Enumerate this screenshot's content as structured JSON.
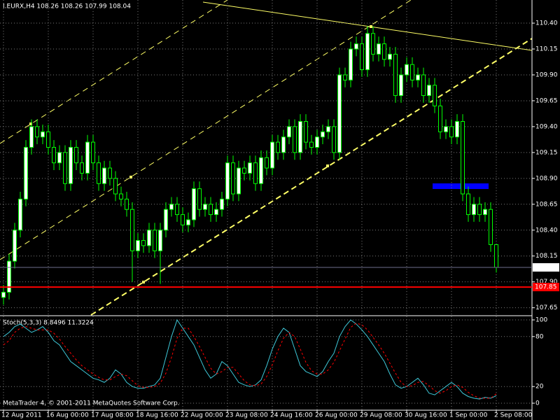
{
  "chart_data": [
    {
      "type": "candlestick",
      "title": "I.EURX,H4 108.26 108.26 107.99 108.04",
      "categories": [
        "12 Aug 2011",
        null,
        null,
        null,
        null,
        null,
        null,
        null,
        "16 Aug 00:00",
        null,
        null,
        null,
        null,
        null,
        null,
        null,
        "17 Aug 08:00",
        null,
        null,
        null,
        null,
        null,
        null,
        null,
        "18 Aug 16:00",
        null,
        null,
        null,
        null,
        null,
        null,
        null,
        "22 Aug 00:00",
        null,
        null,
        null,
        null,
        null,
        null,
        null,
        "23 Aug 08:00",
        null,
        null,
        null,
        null,
        null,
        null,
        null,
        "24 Aug 16:00",
        null,
        null,
        null,
        null,
        null,
        null,
        null,
        "26 Aug 00:00",
        null,
        null,
        null,
        null,
        null,
        null,
        null,
        "29 Aug 08:00",
        null,
        null,
        null,
        null,
        null,
        null,
        null,
        "30 Aug 16:00",
        null,
        null,
        null,
        null,
        null,
        null,
        null,
        "1 Sep 00:00",
        null,
        null,
        null,
        null,
        null,
        null,
        null,
        "2 Sep 08:00"
      ],
      "open": [
        107.75,
        107.8,
        108.1,
        108.4,
        108.7,
        109.2,
        109.4,
        109.3,
        109.35,
        109.2,
        109.05,
        109.15,
        108.85,
        109.2,
        109.05,
        108.95,
        109.25,
        109.05,
        108.85,
        109.0,
        108.9,
        108.75,
        108.7,
        108.6,
        108.2,
        108.3,
        108.25,
        108.4,
        108.2,
        108.4,
        108.6,
        108.65,
        108.55,
        108.45,
        108.5,
        108.8,
        108.6,
        108.65,
        108.55,
        108.6,
        108.7,
        109.05,
        108.75,
        109.0,
        108.95,
        109.05,
        108.85,
        109.1,
        109.0,
        109.25,
        109.15,
        109.3,
        109.4,
        109.15,
        109.45,
        109.25,
        109.2,
        109.3,
        109.35,
        109.4,
        109.15,
        109.9,
        109.85,
        110.15,
        110.2,
        109.95,
        110.3,
        110.1,
        110.2,
        110.05,
        110.1,
        109.7,
        109.9,
        110.0,
        109.85,
        109.9,
        109.7,
        109.8,
        109.6,
        109.35,
        109.4,
        109.3,
        109.45,
        108.75,
        108.55,
        108.65,
        108.55,
        108.6,
        108.26
      ],
      "high": [
        107.87,
        108.17,
        108.47,
        108.77,
        109.27,
        109.47,
        109.47,
        109.42,
        109.42,
        109.27,
        109.22,
        109.22,
        109.27,
        109.27,
        109.12,
        109.32,
        109.32,
        109.12,
        109.07,
        109.07,
        108.97,
        108.82,
        108.77,
        108.67,
        108.37,
        108.37,
        108.47,
        108.47,
        108.47,
        108.67,
        108.72,
        108.72,
        108.62,
        108.57,
        108.87,
        108.87,
        108.72,
        108.72,
        108.67,
        108.77,
        109.12,
        109.12,
        109.07,
        109.07,
        109.12,
        109.12,
        109.17,
        109.17,
        109.32,
        109.32,
        109.37,
        109.47,
        109.47,
        109.52,
        109.52,
        109.32,
        109.37,
        109.42,
        109.47,
        109.47,
        109.97,
        109.97,
        110.22,
        110.27,
        110.27,
        110.37,
        110.37,
        110.27,
        110.27,
        110.17,
        110.17,
        109.97,
        110.07,
        110.07,
        109.97,
        109.97,
        109.87,
        109.87,
        109.67,
        109.47,
        109.47,
        109.52,
        109.52,
        108.82,
        108.72,
        108.72,
        108.67,
        108.67,
        108.26
      ],
      "low": [
        107.68,
        107.73,
        108.03,
        108.33,
        108.63,
        109.13,
        109.23,
        109.23,
        109.13,
        108.98,
        108.98,
        108.78,
        108.78,
        108.98,
        108.88,
        108.88,
        108.98,
        108.78,
        108.78,
        108.83,
        108.68,
        108.63,
        108.53,
        107.9,
        108.13,
        108.18,
        108.18,
        108.13,
        107.88,
        108.33,
        108.53,
        108.48,
        108.38,
        108.38,
        108.43,
        108.53,
        108.53,
        108.48,
        108.48,
        108.53,
        108.63,
        108.68,
        108.68,
        108.88,
        108.88,
        108.78,
        108.78,
        108.93,
        108.93,
        109.08,
        109.08,
        109.23,
        109.08,
        109.08,
        109.18,
        109.13,
        109.13,
        109.23,
        109.28,
        109.08,
        109.08,
        109.78,
        109.78,
        110.08,
        109.88,
        109.88,
        110.03,
        110.03,
        109.98,
        109.98,
        109.63,
        109.63,
        109.83,
        109.78,
        109.78,
        109.63,
        109.63,
        109.53,
        109.28,
        109.28,
        109.23,
        109.23,
        108.68,
        108.48,
        108.48,
        108.48,
        108.48,
        108.19,
        107.99
      ],
      "close": [
        107.8,
        108.1,
        108.4,
        108.7,
        109.2,
        109.4,
        109.3,
        109.35,
        109.2,
        109.05,
        109.15,
        108.85,
        109.2,
        109.05,
        108.95,
        109.25,
        109.05,
        108.85,
        109.0,
        108.9,
        108.75,
        108.7,
        108.6,
        108.2,
        108.3,
        108.25,
        108.4,
        108.2,
        108.4,
        108.6,
        108.65,
        108.55,
        108.45,
        108.5,
        108.8,
        108.6,
        108.65,
        108.55,
        108.6,
        108.7,
        109.05,
        108.75,
        109.0,
        108.95,
        109.05,
        108.85,
        109.1,
        109.0,
        109.25,
        109.15,
        109.3,
        109.4,
        109.15,
        109.45,
        109.25,
        109.2,
        109.3,
        109.35,
        109.4,
        109.15,
        109.9,
        109.85,
        110.15,
        110.2,
        109.95,
        110.3,
        110.1,
        110.2,
        110.05,
        110.1,
        109.7,
        109.9,
        110.0,
        109.85,
        109.9,
        109.7,
        109.8,
        109.6,
        109.35,
        109.4,
        109.3,
        109.45,
        108.75,
        108.55,
        108.65,
        108.55,
        108.6,
        108.26,
        108.04
      ],
      "candle_color": "#00ff00",
      "bull_fill": "#ffffff",
      "bear_fill": "#000000",
      "ylim": [
        107.58,
        110.61
      ],
      "yticks": [
        107.65,
        {
          "value": 107.9,
          "label": "107.90"
        },
        108.15,
        {
          "value": 108.4,
          "label": "108.40"
        },
        108.65,
        {
          "value": 108.9,
          "label": "108.90"
        },
        109.15,
        {
          "value": 109.4,
          "label": "109.40"
        },
        109.65,
        {
          "value": 109.9,
          "label": "109.90"
        },
        110.15,
        {
          "value": 110.4,
          "label": "110.40"
        }
      ],
      "grid": true,
      "hlines": [
        {
          "value": 108.04,
          "color": "#6e6e8c"
        },
        {
          "value": 107.85,
          "color": "#ff0000"
        }
      ]
    },
    {
      "type": "line",
      "title": "Stoch(5,3,3) 8.8496 11.3224",
      "annotation": "MetaTrader 4, © 2001-2011 MetaQuotes Software Corp.",
      "series": [
        {
          "color": "#3ec8d8",
          "style": "solid",
          "values": [
            80,
            85,
            92,
            95,
            90,
            85,
            88,
            92,
            85,
            75,
            70,
            60,
            50,
            45,
            40,
            35,
            30,
            28,
            25,
            30,
            40,
            35,
            25,
            20,
            18,
            18,
            20,
            22,
            30,
            55,
            80,
            100,
            90,
            80,
            70,
            55,
            40,
            30,
            35,
            50,
            45,
            35,
            25,
            22,
            20,
            22,
            28,
            45,
            65,
            80,
            90,
            85,
            65,
            45,
            38,
            35,
            32,
            38,
            50,
            60,
            80,
            92,
            100,
            95,
            88,
            80,
            70,
            60,
            50,
            35,
            22,
            18,
            20,
            25,
            30,
            22,
            12,
            10,
            15,
            20,
            25,
            20,
            12,
            8,
            6,
            5,
            7,
            6,
            8.8496
          ]
        },
        {
          "color": "#ff0000",
          "style": "dashed",
          "values": [
            70,
            75,
            85,
            90,
            92,
            90,
            88,
            88,
            88,
            84,
            77,
            68,
            60,
            52,
            45,
            40,
            35,
            31,
            28,
            28,
            32,
            35,
            33,
            27,
            21,
            19,
            19,
            20,
            24,
            36,
            55,
            78,
            90,
            90,
            80,
            68,
            55,
            42,
            35,
            38,
            43,
            43,
            35,
            27,
            22,
            21,
            23,
            32,
            46,
            63,
            78,
            85,
            80,
            65,
            49,
            39,
            35,
            35,
            40,
            49,
            63,
            77,
            91,
            96,
            94,
            88,
            79,
            70,
            60,
            48,
            36,
            25,
            20,
            21,
            25,
            26,
            21,
            15,
            12,
            15,
            20,
            22,
            19,
            13,
            9,
            6,
            6,
            6,
            11.3224
          ]
        }
      ],
      "ylim": [
        -8.4,
        104.2
      ],
      "yticks": [
        0,
        20,
        80,
        100
      ],
      "grid": true
    }
  ]
}
